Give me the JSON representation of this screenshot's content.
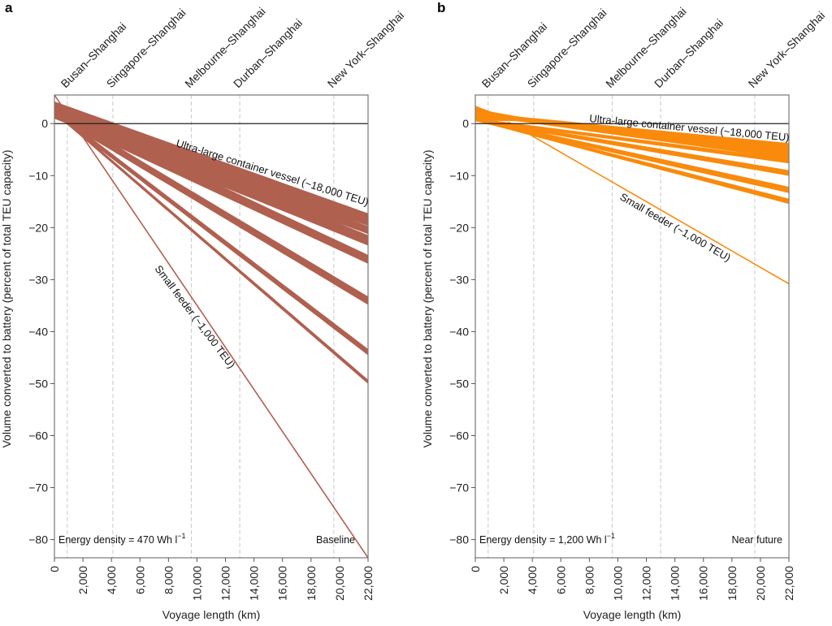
{
  "chart_data": [
    {
      "type": "area",
      "panel": "a",
      "title": "",
      "xlabel": "Voyage length (km)",
      "ylabel": "Volume converted to battery (percent of total TEU capacity)",
      "xlim": [
        0,
        22000
      ],
      "ylim": [
        -83.5,
        5.5
      ],
      "x_ticks": [
        0,
        2000,
        4000,
        6000,
        8000,
        10000,
        12000,
        14000,
        16000,
        18000,
        20000,
        22000
      ],
      "x_tick_labels": [
        "0",
        "2,000",
        "4,000",
        "6,000",
        "8,000",
        "10,000",
        "12,000",
        "14,000",
        "16,000",
        "18,000",
        "20,000",
        "22,000"
      ],
      "y_ticks": [
        0,
        -10,
        -20,
        -30,
        -40,
        -50,
        -60,
        -70,
        -80
      ],
      "y_tick_labels": [
        "0",
        "−10",
        "−20",
        "−30",
        "−40",
        "−50",
        "−60",
        "−70",
        "−80"
      ],
      "color": "#B0604F",
      "routes": [
        {
          "label": "Busan–Shanghai",
          "x": 900
        },
        {
          "label": "Singapore–Shanghai",
          "x": 4100
        },
        {
          "label": "Melbourne–Shanghai",
          "x": 9600
        },
        {
          "label": "Durban–Shanghai",
          "x": 13000
        },
        {
          "label": "New York–Shanghai",
          "x": 19600
        }
      ],
      "bands": [
        {
          "name": "band-1",
          "x": [
            0,
            22000
          ],
          "upper": [
            4.2,
            -17.3
          ],
          "lower": [
            1.0,
            -19.6
          ]
        },
        {
          "name": "band-2",
          "x": [
            0,
            22000
          ],
          "upper": [
            3.5,
            -19.8
          ],
          "lower": [
            1.0,
            -21.2
          ]
        },
        {
          "name": "band-3",
          "x": [
            0,
            22000
          ],
          "upper": [
            3.2,
            -21.5
          ],
          "lower": [
            1.0,
            -23.4
          ]
        },
        {
          "name": "band-4",
          "x": [
            0,
            22000
          ],
          "upper": [
            3.0,
            -25.3
          ],
          "lower": [
            1.2,
            -26.9
          ]
        },
        {
          "name": "band-5",
          "x": [
            0,
            22000
          ],
          "upper": [
            2.8,
            -33.3
          ],
          "lower": [
            1.5,
            -34.8
          ]
        },
        {
          "name": "band-6",
          "x": [
            0,
            22000
          ],
          "upper": [
            2.6,
            -43.4
          ],
          "lower": [
            1.8,
            -44.5
          ]
        },
        {
          "name": "band-7",
          "x": [
            0,
            22000
          ],
          "upper": [
            2.5,
            -49.3
          ],
          "lower": [
            2.0,
            -50.0
          ]
        }
      ],
      "lines": [
        {
          "name": "small-feeder",
          "x": [
            0,
            22000
          ],
          "y": [
            5.5,
            -83.5
          ]
        }
      ],
      "annotations": {
        "ultra_large": "Ultra-large container vessel (~18,000 TEU)",
        "small_feeder": "Small feeder (~1,000 TEU)",
        "energy_density": "Energy density = 470 Wh l",
        "energy_unit_sup": "−1",
        "scenario": "Baseline"
      },
      "panel_label": "a"
    },
    {
      "type": "area",
      "panel": "b",
      "title": "",
      "xlabel": "Voyage length (km)",
      "ylabel": "Volume converted to battery (percent of total TEU capacity)",
      "xlim": [
        0,
        22000
      ],
      "ylim": [
        -83.5,
        5.5
      ],
      "x_ticks": [
        0,
        2000,
        4000,
        6000,
        8000,
        10000,
        12000,
        14000,
        16000,
        18000,
        20000,
        22000
      ],
      "x_tick_labels": [
        "0",
        "2,000",
        "4,000",
        "6,000",
        "8,000",
        "10,000",
        "12,000",
        "14,000",
        "16,000",
        "18,000",
        "20,000",
        "22,000"
      ],
      "y_ticks": [
        0,
        -10,
        -20,
        -30,
        -40,
        -50,
        -60,
        -70,
        -80
      ],
      "y_tick_labels": [
        "0",
        "−10",
        "−20",
        "−30",
        "−40",
        "−50",
        "−60",
        "−70",
        "−80"
      ],
      "color": "#F98A0C",
      "routes": [
        {
          "label": "Busan–Shanghai",
          "x": 900
        },
        {
          "label": "Singapore–Shanghai",
          "x": 4100
        },
        {
          "label": "Melbourne–Shanghai",
          "x": 9600
        },
        {
          "label": "Durban–Shanghai",
          "x": 13000
        },
        {
          "label": "New York–Shanghai",
          "x": 19600
        }
      ],
      "bands": [
        {
          "name": "band-1",
          "x": [
            0,
            1000,
            3000,
            22000
          ],
          "upper": [
            3.4,
            2.3,
            1.3,
            -3.8
          ],
          "lower": [
            0.6,
            0.6,
            0.5,
            -6.8
          ]
        },
        {
          "name": "band-2",
          "x": [
            0,
            22000
          ],
          "upper": [
            1.0,
            -6.8
          ],
          "lower": [
            0.6,
            -7.6
          ]
        },
        {
          "name": "band-3",
          "x": [
            0,
            22000
          ],
          "upper": [
            1.0,
            -9.0
          ],
          "lower": [
            0.5,
            -10.0
          ]
        },
        {
          "name": "band-4",
          "x": [
            0,
            22000
          ],
          "upper": [
            1.0,
            -12.2
          ],
          "lower": [
            0.5,
            -13.3
          ]
        },
        {
          "name": "band-5",
          "x": [
            0,
            22000
          ],
          "upper": [
            1.0,
            -14.5
          ],
          "lower": [
            0.6,
            -15.4
          ]
        }
      ],
      "lines": [
        {
          "name": "small-feeder",
          "x": [
            2300,
            22000
          ],
          "y": [
            0.3,
            -30.8
          ]
        }
      ],
      "annotations": {
        "ultra_large": "Ultra-large container vessel (~18,000 TEU)",
        "small_feeder": "Small feeder (~1,000 TEU)",
        "energy_density": "Energy density = 1,200 Wh l",
        "energy_unit_sup": "−1",
        "scenario": "Near future"
      },
      "panel_label": "b"
    }
  ]
}
